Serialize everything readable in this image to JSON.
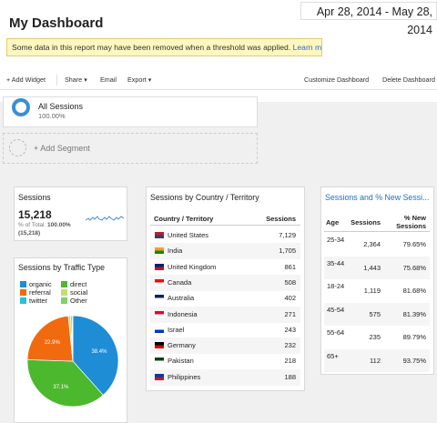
{
  "header": {
    "title": "My Dashboard",
    "date_range": "Apr 28, 2014 - May 28, 2014"
  },
  "notice": {
    "text": "Some data in this report may have been removed when a threshold was applied.",
    "link": "Learn more"
  },
  "toolbar": {
    "add_widget": "+ Add Widget",
    "share": "Share",
    "email": "Email",
    "export": "Export",
    "customize": "Customize Dashboard",
    "delete": "Delete Dashboard"
  },
  "segment": {
    "name": "All Sessions",
    "percent": "100.00%",
    "add_label": "+ Add Segment"
  },
  "sessions_widget": {
    "title": "Sessions",
    "value": "15,218",
    "sub_prefix": "% of Total:",
    "sub_pct": "100.00%",
    "sub_total": "(15,218)"
  },
  "traffic_widget": {
    "title": "Sessions by Traffic Type",
    "legend": [
      {
        "label": "organic",
        "color": "#1f8dd6"
      },
      {
        "label": "direct",
        "color": "#4cb82d"
      },
      {
        "label": "referral",
        "color": "#f26a0f"
      },
      {
        "label": "social",
        "color": "#c1e06c"
      },
      {
        "label": "twitter",
        "color": "#24c3d6"
      },
      {
        "label": "Other",
        "color": "#7ed36c"
      }
    ]
  },
  "chart_data": {
    "type": "pie",
    "title": "Sessions by Traffic Type",
    "slices": [
      {
        "label": "organic",
        "value": 38.4,
        "display": "38.4%",
        "color": "#1f8dd6"
      },
      {
        "label": "direct",
        "value": 37.1,
        "display": "37.1%",
        "color": "#4cb82d"
      },
      {
        "label": "referral",
        "value": 22.9,
        "display": "22.9%",
        "color": "#f26a0f"
      },
      {
        "label": "social",
        "value": 0.8,
        "display": "",
        "color": "#c1e06c"
      },
      {
        "label": "twitter",
        "value": 0.5,
        "display": "",
        "color": "#24c3d6"
      },
      {
        "label": "Other",
        "value": 0.3,
        "display": "",
        "color": "#7ed36c"
      }
    ]
  },
  "country_widget": {
    "title": "Sessions by Country / Territory",
    "col_country": "Country / Territory",
    "col_sessions": "Sessions",
    "rows": [
      {
        "country": "United States",
        "sessions": "7,129",
        "flag": "us"
      },
      {
        "country": "India",
        "sessions": "1,705",
        "flag": "in"
      },
      {
        "country": "United Kingdom",
        "sessions": "861",
        "flag": "gb"
      },
      {
        "country": "Canada",
        "sessions": "508",
        "flag": "ca"
      },
      {
        "country": "Australia",
        "sessions": "402",
        "flag": "au"
      },
      {
        "country": "Indonesia",
        "sessions": "271",
        "flag": "id"
      },
      {
        "country": "Israel",
        "sessions": "243",
        "flag": "il"
      },
      {
        "country": "Germany",
        "sessions": "232",
        "flag": "de"
      },
      {
        "country": "Pakistan",
        "sessions": "218",
        "flag": "pk"
      },
      {
        "country": "Philippines",
        "sessions": "188",
        "flag": "ph"
      }
    ]
  },
  "age_widget": {
    "title": "Sessions and % New Sessi...",
    "col_age": "Age",
    "col_sessions": "Sessions",
    "col_new": "% New Sessions",
    "rows": [
      {
        "age": "25-34",
        "sessions": "2,364",
        "pct_new": "79.65%"
      },
      {
        "age": "35-44",
        "sessions": "1,443",
        "pct_new": "75.68%"
      },
      {
        "age": "18-24",
        "sessions": "1,119",
        "pct_new": "81.68%"
      },
      {
        "age": "45-54",
        "sessions": "575",
        "pct_new": "81.39%"
      },
      {
        "age": "55-64",
        "sessions": "235",
        "pct_new": "89.79%"
      },
      {
        "age": "65+",
        "sessions": "112",
        "pct_new": "93.75%"
      }
    ]
  }
}
